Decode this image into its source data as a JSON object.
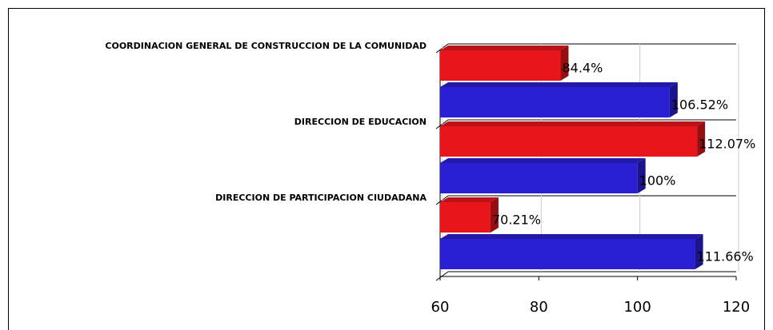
{
  "chart_data": {
    "type": "bar3d",
    "categories": [
      "COORDINACION GENERAL DE CONSTRUCCION DE LA COMUNIDAD",
      "DIRECCION DE EDUCACION",
      "DIRECCION DE PARTICIPACION CIUDADANA"
    ],
    "series": [
      {
        "color": "#e8161b",
        "values": [
          84.4,
          112.07,
          70.21
        ],
        "value_labels": [
          "84.4%",
          "112.07%",
          "70.21%"
        ]
      },
      {
        "color": "#2b1fd4",
        "values": [
          106.52,
          100,
          111.66
        ],
        "value_labels": [
          "106.52%",
          "100%",
          "111.66%"
        ]
      }
    ],
    "xlim": [
      60,
      120
    ],
    "xticks": [
      60,
      80,
      100,
      120
    ],
    "grid": true
  }
}
